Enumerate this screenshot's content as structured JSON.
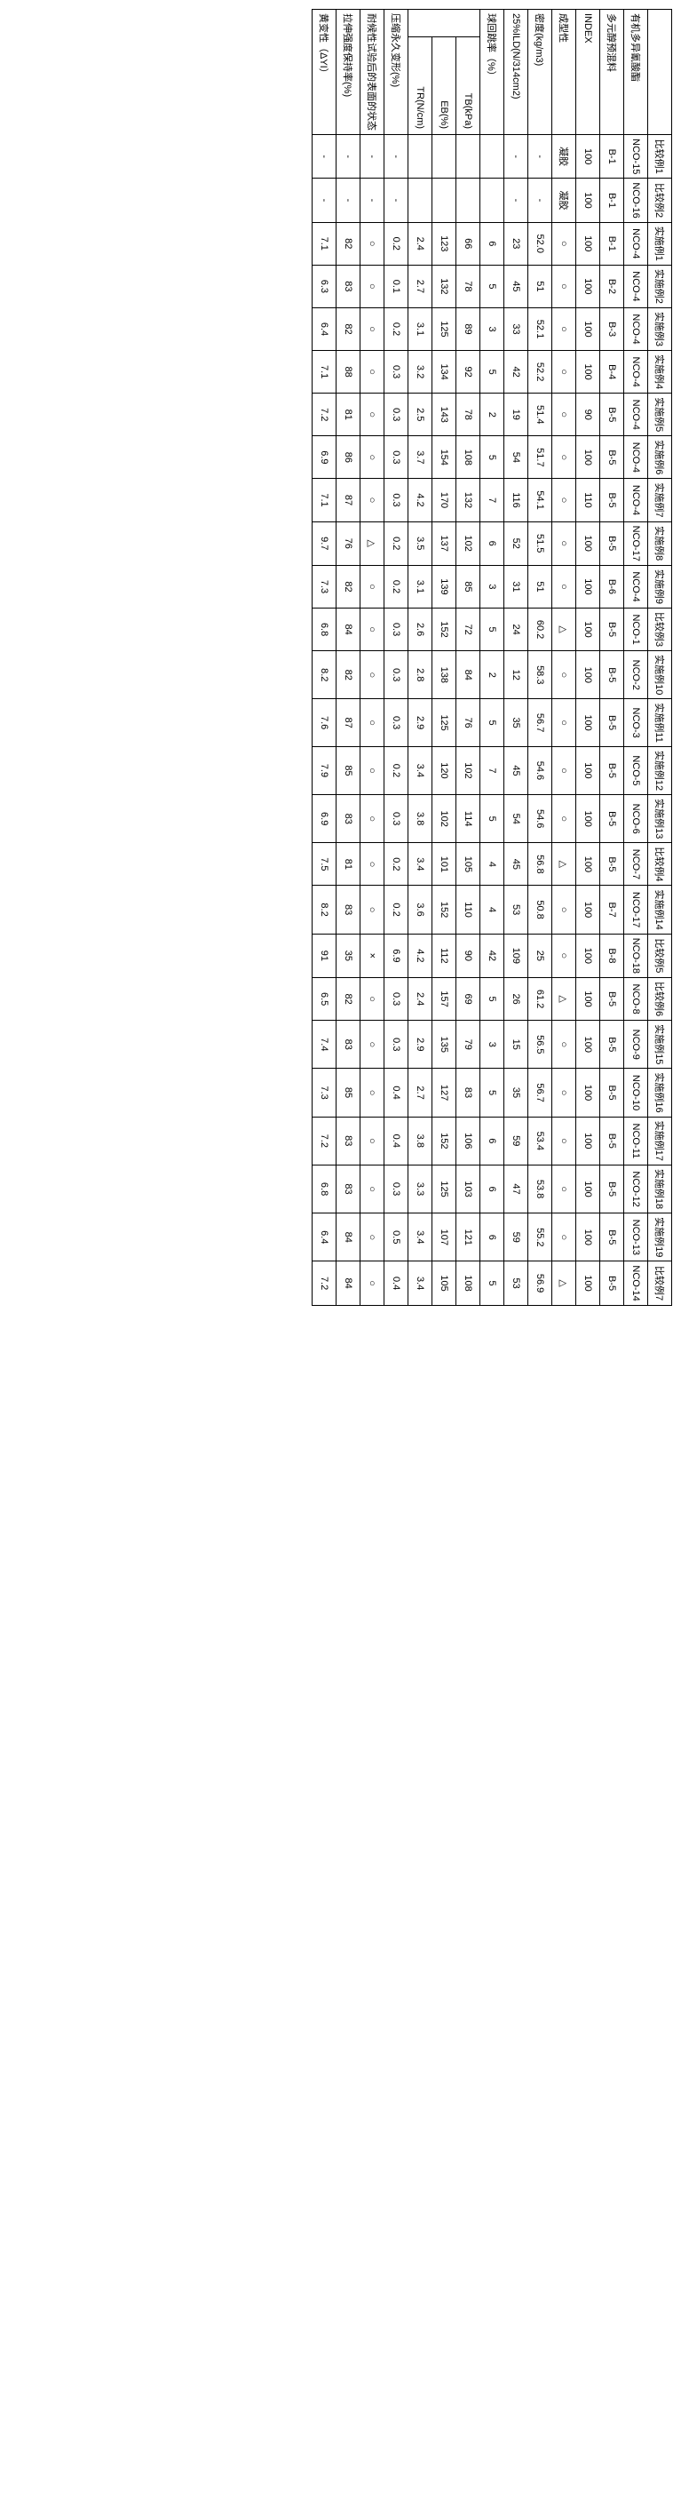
{
  "columns": [
    "比较例1",
    "比较例2",
    "实施例1",
    "实施例2",
    "实施例3",
    "实施例4",
    "实施例5",
    "实施例6",
    "实施例7",
    "实施例8",
    "实施例9",
    "比较例3",
    "实施例10",
    "实施例11",
    "实施例12",
    "实施例13",
    "比较例4",
    "实施例14",
    "比较例5",
    "比较例6",
    "实施例15",
    "实施例16",
    "实施例17",
    "实施例18",
    "实施例19",
    "比较例7"
  ],
  "rows": [
    {
      "label": "有机多异氰酸酯",
      "cells": [
        "NCO-15",
        "NCO-16",
        "NCO-4",
        "NCO-4",
        "NCO-4",
        "NCO-4",
        "NCO-4",
        "NCO-4",
        "NCO-4",
        "NCO-17",
        "NCO-4",
        "NCO-1",
        "NCO-2",
        "NCO-3",
        "NCO-5",
        "NCO-6",
        "NCO-7",
        "NCO-17",
        "NCO-18",
        "NCO-8",
        "NCO-9",
        "NCO-10",
        "NCO-11",
        "NCO-12",
        "NCO-13",
        "NCO-14"
      ]
    },
    {
      "label": "多元醇预混料",
      "cells": [
        "B-1",
        "B-1",
        "B-1",
        "B-2",
        "B-3",
        "B-4",
        "B-5",
        "B-5",
        "B-5",
        "B-5",
        "B-6",
        "B-5",
        "B-5",
        "B-5",
        "B-5",
        "B-5",
        "B-5",
        "B-7",
        "B-8",
        "B-5",
        "B-5",
        "B-5",
        "B-5",
        "B-5",
        "B-5",
        "B-5"
      ]
    },
    {
      "label": "INDEX",
      "cells": [
        "100",
        "100",
        "100",
        "100",
        "100",
        "100",
        "90",
        "100",
        "110",
        "100",
        "100",
        "100",
        "100",
        "100",
        "100",
        "100",
        "100",
        "100",
        "100",
        "100",
        "100",
        "100",
        "100",
        "100",
        "100",
        "100"
      ]
    },
    {
      "label": "成型性",
      "cells": [
        "凝胶",
        "凝胶",
        "○",
        "○",
        "○",
        "○",
        "○",
        "○",
        "○",
        "○",
        "○",
        "△",
        "○",
        "○",
        "○",
        "○",
        "△",
        "○",
        "○",
        "△",
        "○",
        "○",
        "○",
        "○",
        "○",
        "△"
      ]
    },
    {
      "label": "密度(kg/m3)",
      "cells": [
        "-",
        "-",
        "52.0",
        "51",
        "52.1",
        "52.2",
        "51.4",
        "51.7",
        "54.1",
        "51.5",
        "51",
        "60.2",
        "58.3",
        "56.7",
        "54.6",
        "54.6",
        "56.8",
        "50.8",
        "25",
        "61.2",
        "56.5",
        "56.7",
        "53.4",
        "53.8",
        "55.2",
        "56.9"
      ]
    },
    {
      "label": "25%ILD(N/314cm2)",
      "cells": [
        "-",
        "-",
        "23",
        "45",
        "33",
        "42",
        "19",
        "54",
        "116",
        "52",
        "31",
        "24",
        "12",
        "35",
        "45",
        "54",
        "45",
        "53",
        "109",
        "26",
        "15",
        "35",
        "59",
        "47",
        "59",
        "53"
      ]
    },
    {
      "label": "球回跳率（%）",
      "cells": [
        "",
        "",
        "6",
        "5",
        "3",
        "5",
        "2",
        "5",
        "7",
        "6",
        "3",
        "5",
        "2",
        "5",
        "7",
        "5",
        "4",
        "4",
        "42",
        "5",
        "3",
        "5",
        "6",
        "6",
        "6",
        "5"
      ]
    },
    {
      "label": "TB(kPa)",
      "sub": true,
      "cells": [
        "",
        "",
        "66",
        "78",
        "89",
        "92",
        "78",
        "108",
        "132",
        "102",
        "85",
        "72",
        "84",
        "76",
        "102",
        "114",
        "105",
        "110",
        "90",
        "69",
        "79",
        "83",
        "106",
        "103",
        "121",
        "108"
      ]
    },
    {
      "label": "EB(%)",
      "sub": true,
      "cells": [
        "",
        "",
        "123",
        "132",
        "125",
        "134",
        "143",
        "154",
        "170",
        "137",
        "139",
        "152",
        "138",
        "125",
        "120",
        "102",
        "101",
        "152",
        "112",
        "157",
        "135",
        "127",
        "152",
        "125",
        "107",
        "105"
      ]
    },
    {
      "label": "TR(N/cm)",
      "sub": true,
      "cells": [
        "",
        "",
        "2.4",
        "2.7",
        "3.1",
        "3.2",
        "2.5",
        "3.7",
        "4.2",
        "3.5",
        "3.1",
        "2.6",
        "2.8",
        "2.9",
        "3.4",
        "3.8",
        "3.4",
        "3.6",
        "4.2",
        "2.4",
        "2.9",
        "2.7",
        "3.8",
        "3.3",
        "3.4",
        "3.4"
      ]
    },
    {
      "label": "压缩永久变形(%)",
      "cells": [
        "-",
        "-",
        "0.2",
        "0.1",
        "0.2",
        "0.3",
        "0.3",
        "0.3",
        "0.3",
        "0.2",
        "0.2",
        "0.3",
        "0.3",
        "0.3",
        "0.2",
        "0.3",
        "0.2",
        "0.2",
        "6.9",
        "0.3",
        "0.3",
        "0.4",
        "0.4",
        "0.3",
        "0.5",
        "0.4"
      ]
    },
    {
      "label": "耐候性试验后的表面的状态",
      "cells": [
        "-",
        "-",
        "○",
        "○",
        "○",
        "○",
        "○",
        "○",
        "○",
        "△",
        "○",
        "○",
        "○",
        "○",
        "○",
        "○",
        "○",
        "○",
        "×",
        "○",
        "○",
        "○",
        "○",
        "○",
        "○",
        "○"
      ]
    },
    {
      "label": "拉伸强度保持率(%)",
      "cells": [
        "-",
        "-",
        "82",
        "83",
        "82",
        "88",
        "81",
        "86",
        "87",
        "76",
        "82",
        "84",
        "82",
        "87",
        "85",
        "83",
        "81",
        "83",
        "35",
        "82",
        "83",
        "85",
        "83",
        "83",
        "84",
        "84"
      ]
    },
    {
      "label": "黄变性（ΔYI）",
      "cells": [
        "-",
        "-",
        "7.1",
        "6.3",
        "6.4",
        "7.1",
        "7.2",
        "6.9",
        "7.1",
        "9.7",
        "7.3",
        "6.8",
        "8.2",
        "7.6",
        "7.9",
        "6.9",
        "7.5",
        "8.2",
        "91",
        "6.5",
        "7.4",
        "7.3",
        "7.2",
        "6.8",
        "6.4",
        "7.2"
      ]
    }
  ]
}
